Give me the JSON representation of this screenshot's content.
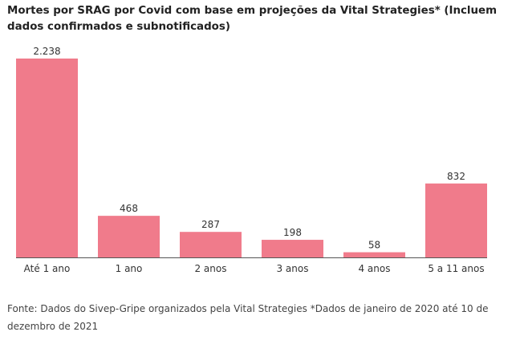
{
  "chart_data": {
    "type": "bar",
    "title": "Mortes por SRAG por Covid com base em projeções da Vital Strategies* (Incluem dados confirmados e subnotificados)",
    "categories": [
      "Até 1 ano",
      "1 ano",
      "2 anos",
      "3 anos",
      "4 anos",
      "5 a 11 anos"
    ],
    "values": [
      2238,
      468,
      287,
      198,
      58,
      832
    ],
    "value_labels": [
      "2.238",
      "468",
      "287",
      "198",
      "58",
      "832"
    ],
    "ylim": [
      0,
      2238
    ],
    "xlabel": "",
    "ylabel": "",
    "grid": false,
    "legend": "none",
    "colors": {
      "bar": "#f07b8b",
      "baseline": "#555555"
    }
  },
  "source": "Fonte: Dados do Sivep-Gripe organizados pela Vital Strategies *Dados de janeiro de 2020 até 10 de dezembro de 2021"
}
